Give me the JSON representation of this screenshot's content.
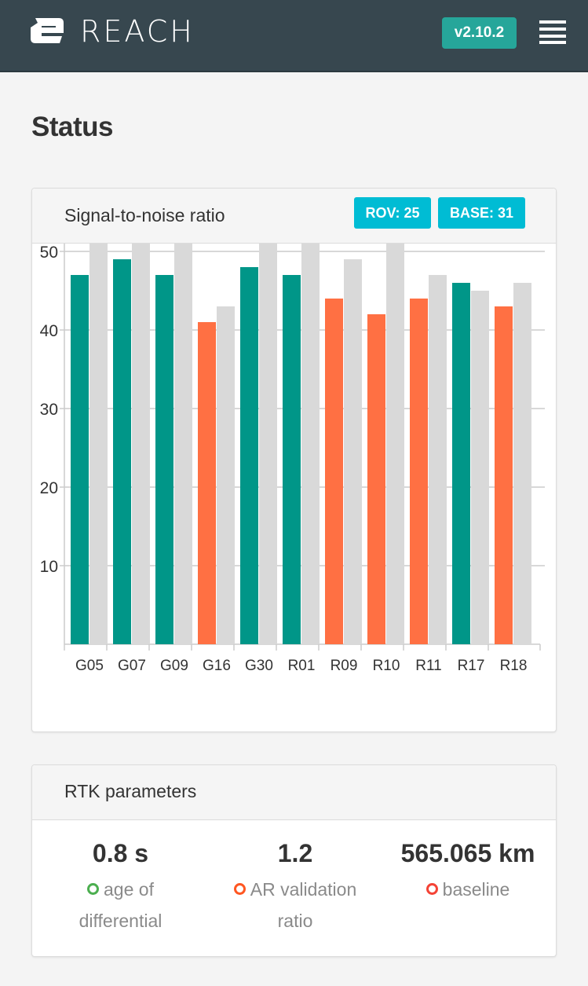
{
  "header": {
    "brand": "REACH",
    "version": "v2.10.2",
    "logo_icon": "reach-logo-icon",
    "menu_icon": "hamburger-menu-icon"
  },
  "page": {
    "title": "Status"
  },
  "snr": {
    "title": "Signal-to-noise ratio",
    "rov_badge": "ROV: 25",
    "base_badge": "BASE: 31"
  },
  "chart_data": {
    "type": "bar",
    "categories": [
      "G05",
      "G07",
      "G09",
      "G16",
      "G30",
      "R01",
      "R09",
      "R10",
      "R11",
      "R17",
      "R18"
    ],
    "series": [
      {
        "values": [
          47,
          49,
          47,
          41,
          48,
          47,
          44,
          42,
          44,
          46,
          43
        ]
      },
      {
        "values": [
          54,
          56,
          52,
          43,
          52,
          53,
          49,
          56,
          47,
          45,
          46
        ]
      }
    ],
    "rover_bar_colors": [
      "#009688",
      "#009688",
      "#009688",
      "#ff7043",
      "#009688",
      "#009688",
      "#ff7043",
      "#ff7043",
      "#ff7043",
      "#009688",
      "#ff7043"
    ],
    "base_color": "#d9d9d9",
    "yticks": [
      10,
      20,
      30,
      40,
      50
    ],
    "ylim": [
      0,
      55
    ],
    "grid": true,
    "legend": "none"
  },
  "rtk": {
    "title": "RTK parameters",
    "params": [
      {
        "value": "0.8 s",
        "label_line1": "age of",
        "label_line2": "differential",
        "status_color": "#4caf50"
      },
      {
        "value": "1.2",
        "label_line1": "AR validation",
        "label_line2": "ratio",
        "status_color": "#ff5722"
      },
      {
        "value": "565.065 km",
        "label_line1": "baseline",
        "label_line2": "",
        "status_color": "#f44336"
      }
    ]
  },
  "colors": {
    "header_bg": "#37474f",
    "version_bg": "#26a69a",
    "badge_bg": "#00bcd4",
    "page_bg": "#f4f4f4"
  }
}
